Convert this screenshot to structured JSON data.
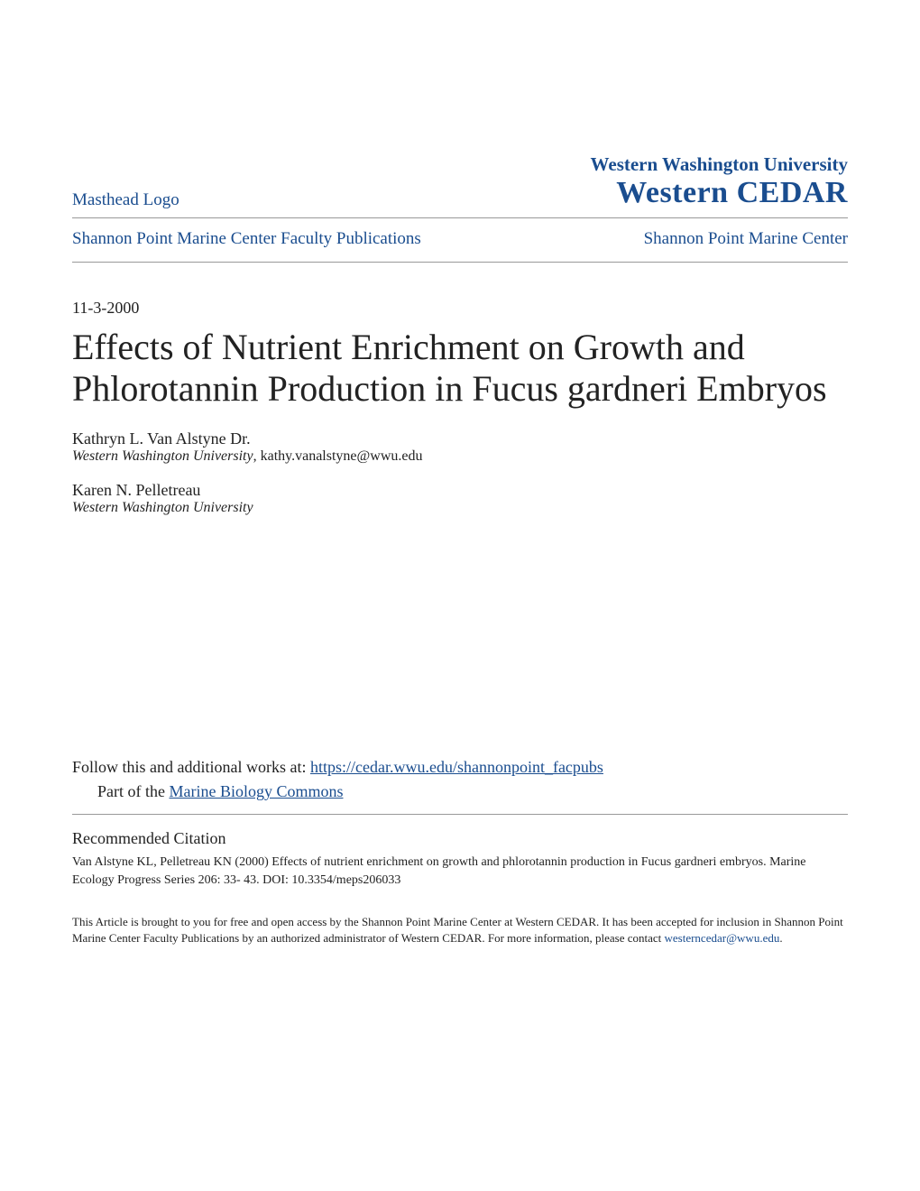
{
  "header": {
    "masthead_label": "Masthead Logo",
    "university_name": "Western Washington University",
    "repository_name": "Western CEDAR"
  },
  "nav": {
    "left_link": "Shannon Point Marine Center Faculty Publications",
    "right_link": "Shannon Point Marine Center"
  },
  "date": "11-3-2000",
  "title": "Effects of Nutrient Enrichment on Growth and Phlorotannin Production in Fucus gardneri Embryos",
  "authors": [
    {
      "name": "Kathryn L. Van Alstyne Dr.",
      "affiliation": "Western Washington University",
      "email": ", kathy.vanalstyne@wwu.edu"
    },
    {
      "name": "Karen N. Pelletreau",
      "affiliation": "Western Washington University",
      "email": ""
    }
  ],
  "follow": {
    "prefix": "Follow this and additional works at: ",
    "url": "https://cedar.wwu.edu/shannonpoint_facpubs",
    "part_of_prefix": "Part of the ",
    "part_of_link": "Marine Biology Commons"
  },
  "citation": {
    "heading": "Recommended Citation",
    "text": "Van Alstyne KL, Pelletreau KN (2000) Effects of nutrient enrichment on growth and phlorotannin production in Fucus gardneri embryos. Marine Ecology Progress Series 206: 33- 43. DOI: 10.3354/meps206033"
  },
  "footer": {
    "text": "This Article is brought to you for free and open access by the Shannon Point Marine Center at Western CEDAR. It has been accepted for inclusion in Shannon Point Marine Center Faculty Publications by an authorized administrator of Western CEDAR. For more information, please contact ",
    "email": "westerncedar@wwu.edu",
    "suffix": "."
  }
}
